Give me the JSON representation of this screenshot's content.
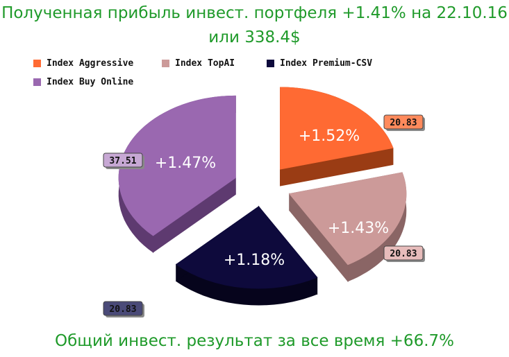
{
  "header": {
    "line1": "Полученная прибыль инвест. портфеля +1.41% на 22.10.16",
    "line2": "или 338.4$"
  },
  "footer": "Общий инвест. результат за все время +66.7%",
  "chart_data": {
    "type": "pie",
    "title": "Полученная прибыль инвест. портфеля +1.41% на 22.10.16 или 338.4$",
    "legend_placement": "top-left",
    "slices": [
      {
        "name": "Index Aggressive",
        "value": 20.83,
        "pct_label": "+1.52%",
        "color": "#ff6a33",
        "side": "#9a3c14",
        "label_color": "#ff8a5c"
      },
      {
        "name": "Index TopAI",
        "value": 20.83,
        "pct_label": "+1.43%",
        "color": "#cc9a99",
        "side": "#8a6565",
        "label_color": "#e7bcbb"
      },
      {
        "name": "Index Premium-CSV",
        "value": 20.83,
        "pct_label": "+1.18%",
        "color": "#0e0a3c",
        "side": "#06041c",
        "label_color": "#4a4a78"
      },
      {
        "name": "Index Buy Online",
        "value": 37.51,
        "pct_label": "+1.47%",
        "color": "#9a68b0",
        "side": "#5e3a70",
        "label_color": "#c7a8d4"
      }
    ]
  }
}
